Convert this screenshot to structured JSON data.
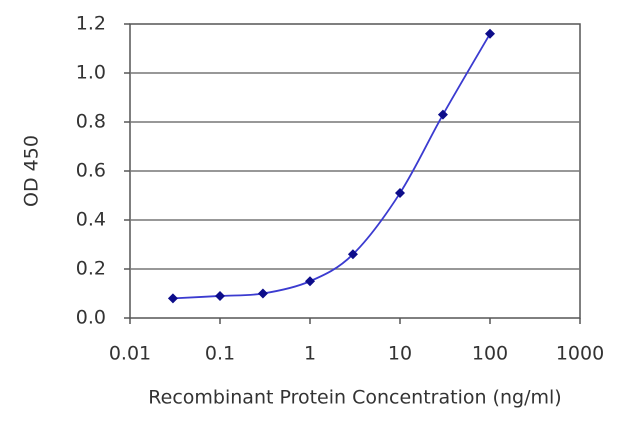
{
  "chart_data": {
    "type": "scatter",
    "xlabel": "Recombinant Protein Concentration (ng/ml)",
    "ylabel": "OD 450",
    "x": [
      0.03,
      0.1,
      0.3,
      1,
      3,
      10,
      30,
      100
    ],
    "series": [
      {
        "color": "#0d0d8a",
        "line_color": "#3b3bd0",
        "values": [
          0.08,
          0.09,
          0.1,
          0.15,
          0.26,
          0.51,
          0.83,
          1.16
        ]
      }
    ],
    "xscale": "log",
    "xlim": [
      0.01,
      1000
    ],
    "xticks": [
      0.01,
      0.1,
      1,
      10,
      100,
      1000
    ],
    "ylim": [
      0,
      1.2
    ],
    "yticks": [
      {
        "value": 0,
        "label": "0.0"
      },
      0.2,
      0.4,
      0.6,
      0.8,
      {
        "value": 1,
        "label": "1.0"
      },
      1.2
    ],
    "grid": true
  }
}
